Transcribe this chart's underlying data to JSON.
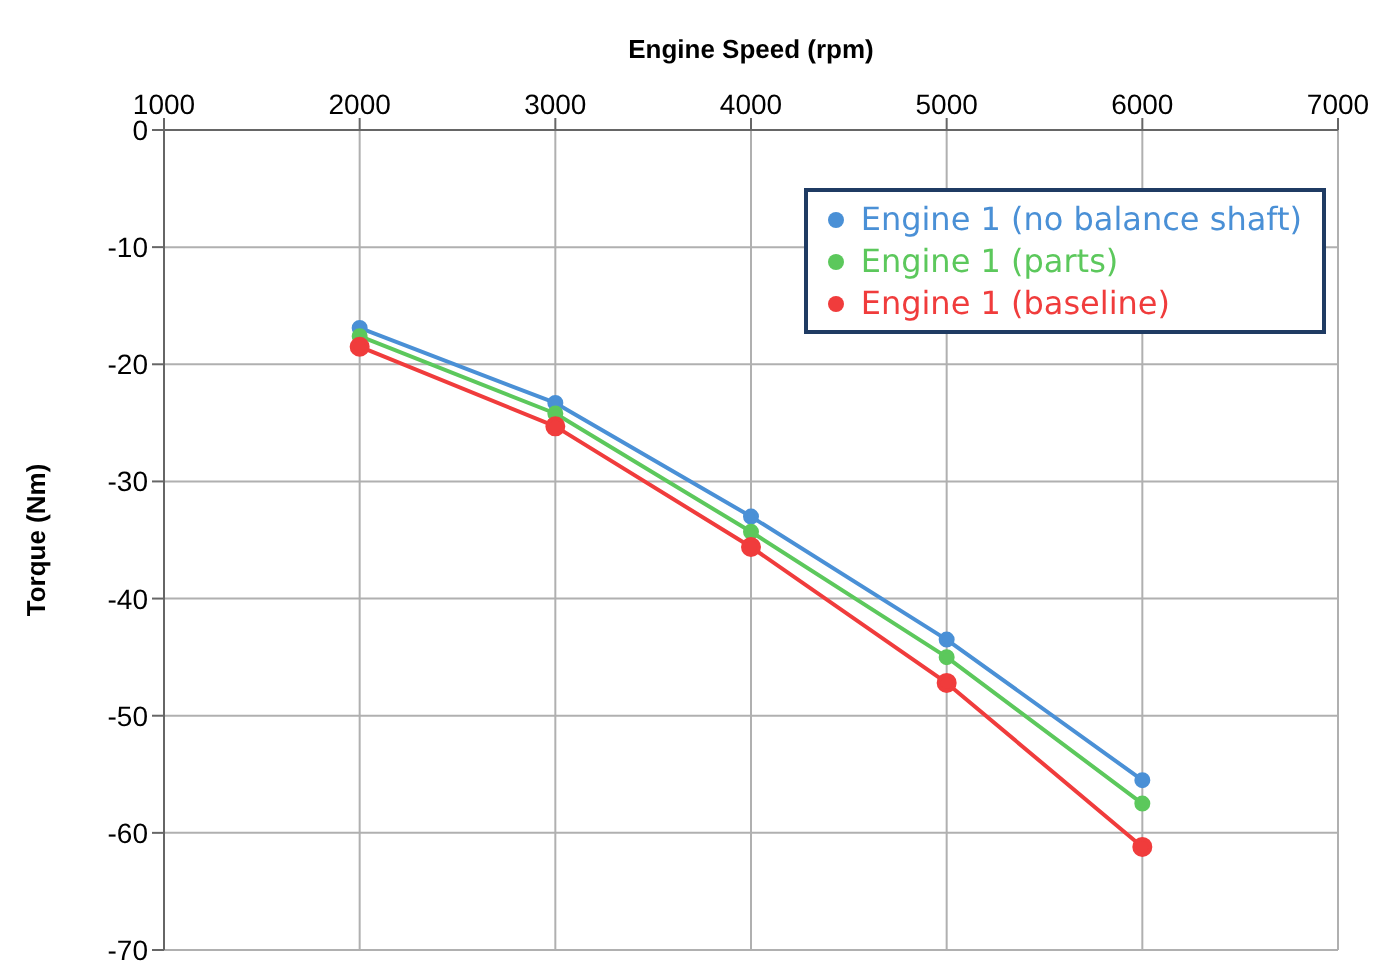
{
  "chart_data": {
    "type": "line",
    "xlabel": "Engine Speed (rpm)",
    "ylabel": "Torque (Nm)",
    "x": [
      2000,
      3000,
      4000,
      5000,
      6000
    ],
    "series": [
      {
        "name": "Engine 1 (no balance shaft)",
        "color": "#4a90d6",
        "values": [
          -16.9,
          -23.3,
          -33,
          -43.5,
          -55.5
        ]
      },
      {
        "name": "Engine 1 (parts)",
        "color": "#5cc85c",
        "values": [
          -17.6,
          -24.2,
          -34.3,
          -45,
          -57.5
        ]
      },
      {
        "name": "Engine 1 (baseline)",
        "color": "#f03c3c",
        "values": [
          -18.5,
          -25.3,
          -35.6,
          -47.2,
          -61.2
        ]
      }
    ],
    "xlim": [
      1000,
      7000
    ],
    "xticks": [
      1000,
      2000,
      3000,
      4000,
      5000,
      6000,
      7000
    ],
    "ylim": [
      -70,
      0
    ],
    "yticks": [
      -70,
      -60,
      -50,
      -40,
      -30,
      -20,
      -10,
      0
    ],
    "grid": true,
    "legend": "top right",
    "marker": "circle",
    "line_style": "solid"
  }
}
